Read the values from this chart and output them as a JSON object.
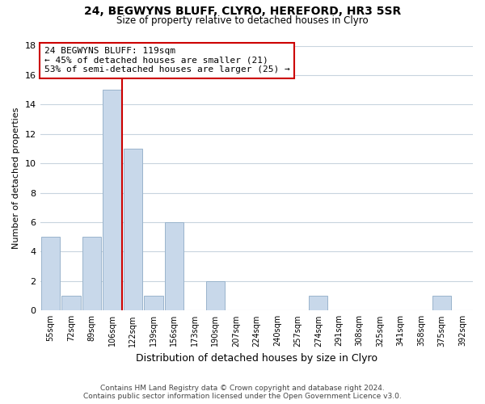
{
  "title1": "24, BEGWYNS BLUFF, CLYRO, HEREFORD, HR3 5SR",
  "title2": "Size of property relative to detached houses in Clyro",
  "xlabel": "Distribution of detached houses by size in Clyro",
  "ylabel": "Number of detached properties",
  "bar_labels": [
    "55sqm",
    "72sqm",
    "89sqm",
    "106sqm",
    "122sqm",
    "139sqm",
    "156sqm",
    "173sqm",
    "190sqm",
    "207sqm",
    "224sqm",
    "240sqm",
    "257sqm",
    "274sqm",
    "291sqm",
    "308sqm",
    "325sqm",
    "341sqm",
    "358sqm",
    "375sqm",
    "392sqm"
  ],
  "bar_values": [
    5,
    1,
    5,
    15,
    11,
    1,
    6,
    0,
    2,
    0,
    0,
    0,
    0,
    1,
    0,
    0,
    0,
    0,
    0,
    1,
    0
  ],
  "bar_color": "#c8d8ea",
  "bar_edge_color": "#9ab4cc",
  "vline_color": "#cc0000",
  "annotation_line1": "24 BEGWYNS BLUFF: 119sqm",
  "annotation_line2": "← 45% of detached houses are smaller (21)",
  "annotation_line3": "53% of semi-detached houses are larger (25) →",
  "annotation_box_edgecolor": "#cc0000",
  "annotation_box_facecolor": "#ffffff",
  "ylim": [
    0,
    18
  ],
  "yticks": [
    0,
    2,
    4,
    6,
    8,
    10,
    12,
    14,
    16,
    18
  ],
  "footer_text": "Contains HM Land Registry data © Crown copyright and database right 2024.\nContains public sector information licensed under the Open Government Licence v3.0.",
  "bg_color": "#ffffff",
  "grid_color": "#c8d4de"
}
